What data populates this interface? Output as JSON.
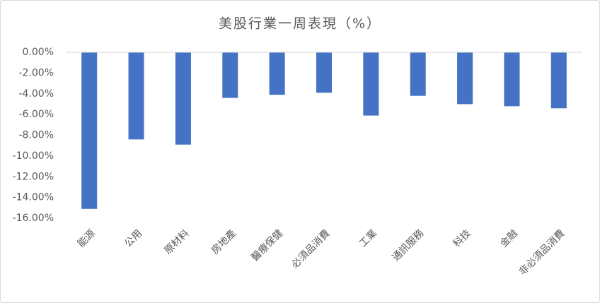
{
  "chart_data": {
    "type": "bar",
    "title": "美股行業一周表現（%）",
    "categories": [
      "能源",
      "公用",
      "原材料",
      "房地產",
      "醫療保健",
      "必須品消費",
      "工業",
      "通訊服務",
      "科技",
      "金融",
      "非必須品消費"
    ],
    "values": [
      -15.1,
      -8.4,
      -8.9,
      -4.4,
      -4.1,
      -3.9,
      -6.1,
      -4.2,
      -5.0,
      -5.2,
      -5.4
    ],
    "color": "#4472c4",
    "ylim": [
      -16,
      0
    ],
    "yticks": [
      {
        "value": 0,
        "label": "0.00%"
      },
      {
        "value": -2,
        "label": "-2.00%"
      },
      {
        "value": -4,
        "label": "-4.00%"
      },
      {
        "value": -6,
        "label": "-6.00%"
      },
      {
        "value": -8,
        "label": "-8.00%"
      },
      {
        "value": -10,
        "label": "-10.00%"
      },
      {
        "value": -12,
        "label": "-12.00%"
      },
      {
        "value": -14,
        "label": "-14.00%"
      },
      {
        "value": -16,
        "label": "-16.00%"
      }
    ],
    "grid": false
  }
}
